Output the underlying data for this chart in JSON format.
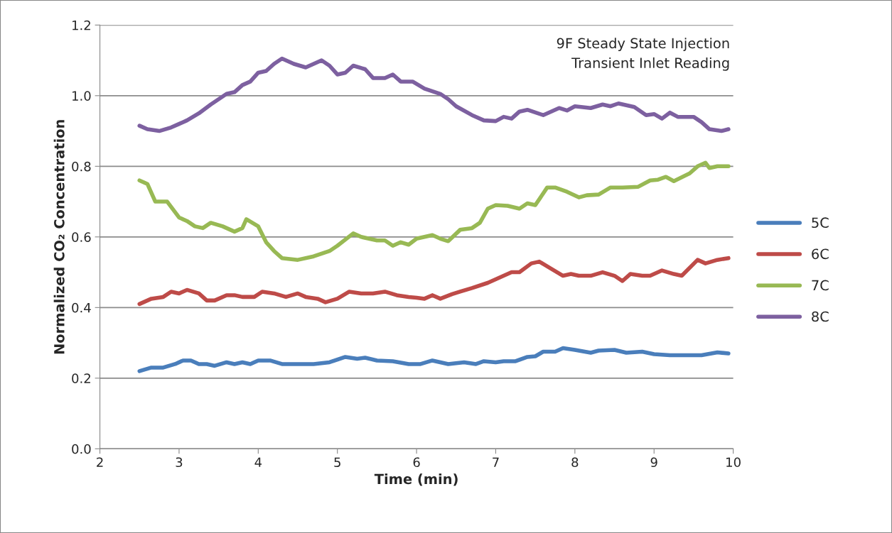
{
  "chart_data": {
    "type": "line",
    "title": "9F Steady State Injection\nTransient Inlet Reading",
    "xlabel": "Time (min)",
    "ylabel": "Normalized CO₂ Concentration",
    "xlim": [
      2,
      10
    ],
    "xticks": [
      2,
      3,
      4,
      5,
      6,
      7,
      8,
      9,
      10
    ],
    "ylim": [
      0,
      1.2
    ],
    "yticks": [
      {
        "value": 0,
        "label": "0.0"
      },
      0.2,
      0.4,
      0.6,
      0.8,
      {
        "value": 1,
        "label": "1.0"
      },
      1.2
    ],
    "grid": "y",
    "legend": "right",
    "marker": "none",
    "line_style": "solid",
    "series": [
      {
        "name": "5C",
        "color": "#4a7ebb",
        "x": [
          2.5,
          2.65,
          2.8,
          2.95,
          3.05,
          3.15,
          3.25,
          3.35,
          3.45,
          3.6,
          3.7,
          3.8,
          3.9,
          4.0,
          4.15,
          4.3,
          4.5,
          4.7,
          4.9,
          5.1,
          5.25,
          5.35,
          5.5,
          5.7,
          5.9,
          6.05,
          6.2,
          6.4,
          6.6,
          6.75,
          6.85,
          7.0,
          7.1,
          7.25,
          7.4,
          7.5,
          7.6,
          7.75,
          7.85,
          8.0,
          8.2,
          8.3,
          8.5,
          8.65,
          8.85,
          9.0,
          9.2,
          9.4,
          9.6,
          9.8,
          9.94
        ],
        "values": [
          0.22,
          0.23,
          0.23,
          0.24,
          0.25,
          0.25,
          0.24,
          0.24,
          0.235,
          0.245,
          0.24,
          0.245,
          0.24,
          0.25,
          0.25,
          0.24,
          0.24,
          0.24,
          0.245,
          0.26,
          0.255,
          0.258,
          0.25,
          0.248,
          0.24,
          0.24,
          0.25,
          0.24,
          0.245,
          0.24,
          0.248,
          0.245,
          0.248,
          0.248,
          0.26,
          0.262,
          0.275,
          0.275,
          0.285,
          0.28,
          0.272,
          0.278,
          0.28,
          0.272,
          0.275,
          0.268,
          0.265,
          0.265,
          0.265,
          0.273,
          0.27
        ]
      },
      {
        "name": "6C",
        "color": "#be4b48",
        "x": [
          2.5,
          2.65,
          2.8,
          2.9,
          3.0,
          3.1,
          3.25,
          3.35,
          3.45,
          3.6,
          3.7,
          3.8,
          3.95,
          4.05,
          4.2,
          4.35,
          4.5,
          4.6,
          4.75,
          4.85,
          5.0,
          5.15,
          5.3,
          5.45,
          5.6,
          5.75,
          5.9,
          6.0,
          6.1,
          6.2,
          6.3,
          6.45,
          6.55,
          6.7,
          6.9,
          7.05,
          7.2,
          7.3,
          7.45,
          7.55,
          7.7,
          7.85,
          7.95,
          8.05,
          8.2,
          8.35,
          8.5,
          8.6,
          8.7,
          8.85,
          8.95,
          9.1,
          9.25,
          9.35,
          9.55,
          9.65,
          9.8,
          9.94
        ],
        "values": [
          0.41,
          0.425,
          0.43,
          0.445,
          0.44,
          0.45,
          0.44,
          0.42,
          0.42,
          0.435,
          0.435,
          0.43,
          0.43,
          0.445,
          0.44,
          0.43,
          0.44,
          0.43,
          0.425,
          0.415,
          0.425,
          0.445,
          0.44,
          0.44,
          0.445,
          0.435,
          0.43,
          0.428,
          0.425,
          0.435,
          0.425,
          0.438,
          0.445,
          0.455,
          0.47,
          0.485,
          0.5,
          0.5,
          0.525,
          0.53,
          0.51,
          0.49,
          0.495,
          0.49,
          0.49,
          0.5,
          0.49,
          0.475,
          0.495,
          0.49,
          0.49,
          0.505,
          0.495,
          0.49,
          0.535,
          0.525,
          0.535,
          0.54
        ]
      },
      {
        "name": "7C",
        "color": "#98b954",
        "x": [
          2.5,
          2.6,
          2.7,
          2.85,
          3.0,
          3.1,
          3.2,
          3.3,
          3.4,
          3.55,
          3.7,
          3.8,
          3.85,
          4.0,
          4.1,
          4.2,
          4.3,
          4.5,
          4.7,
          4.9,
          5.0,
          5.2,
          5.3,
          5.5,
          5.6,
          5.7,
          5.8,
          5.9,
          6.0,
          6.1,
          6.2,
          6.3,
          6.4,
          6.55,
          6.7,
          6.8,
          6.9,
          7.0,
          7.15,
          7.3,
          7.4,
          7.5,
          7.65,
          7.75,
          7.9,
          8.05,
          8.15,
          8.3,
          8.45,
          8.6,
          8.8,
          8.95,
          9.05,
          9.15,
          9.25,
          9.45,
          9.55,
          9.65,
          9.7,
          9.8,
          9.94
        ],
        "values": [
          0.76,
          0.75,
          0.7,
          0.7,
          0.655,
          0.645,
          0.63,
          0.625,
          0.64,
          0.63,
          0.615,
          0.625,
          0.65,
          0.63,
          0.585,
          0.56,
          0.54,
          0.535,
          0.545,
          0.56,
          0.575,
          0.61,
          0.6,
          0.59,
          0.59,
          0.575,
          0.585,
          0.578,
          0.595,
          0.6,
          0.605,
          0.595,
          0.588,
          0.62,
          0.625,
          0.64,
          0.68,
          0.69,
          0.688,
          0.68,
          0.695,
          0.69,
          0.74,
          0.74,
          0.728,
          0.712,
          0.718,
          0.72,
          0.74,
          0.74,
          0.742,
          0.76,
          0.762,
          0.77,
          0.758,
          0.78,
          0.8,
          0.81,
          0.795,
          0.8,
          0.8
        ]
      },
      {
        "name": "8C",
        "color": "#7d60a0",
        "x": [
          2.5,
          2.6,
          2.75,
          2.9,
          3.0,
          3.1,
          3.25,
          3.4,
          3.5,
          3.6,
          3.7,
          3.8,
          3.9,
          4.0,
          4.1,
          4.2,
          4.3,
          4.45,
          4.6,
          4.7,
          4.8,
          4.9,
          5.0,
          5.1,
          5.2,
          5.35,
          5.45,
          5.6,
          5.7,
          5.8,
          5.95,
          6.1,
          6.3,
          6.4,
          6.5,
          6.7,
          6.85,
          7.0,
          7.1,
          7.2,
          7.3,
          7.4,
          7.6,
          7.8,
          7.9,
          8.0,
          8.2,
          8.35,
          8.45,
          8.55,
          8.75,
          8.9,
          9.0,
          9.1,
          9.2,
          9.3,
          9.5,
          9.6,
          9.7,
          9.85,
          9.94
        ],
        "values": [
          0.915,
          0.905,
          0.9,
          0.91,
          0.92,
          0.93,
          0.95,
          0.975,
          0.99,
          1.005,
          1.01,
          1.03,
          1.04,
          1.065,
          1.07,
          1.09,
          1.105,
          1.09,
          1.08,
          1.09,
          1.1,
          1.085,
          1.06,
          1.065,
          1.085,
          1.075,
          1.05,
          1.05,
          1.06,
          1.04,
          1.04,
          1.02,
          1.005,
          0.99,
          0.97,
          0.945,
          0.93,
          0.928,
          0.94,
          0.935,
          0.955,
          0.96,
          0.945,
          0.965,
          0.958,
          0.97,
          0.965,
          0.975,
          0.97,
          0.978,
          0.968,
          0.945,
          0.948,
          0.935,
          0.952,
          0.94,
          0.94,
          0.925,
          0.905,
          0.9,
          0.905
        ]
      }
    ]
  }
}
